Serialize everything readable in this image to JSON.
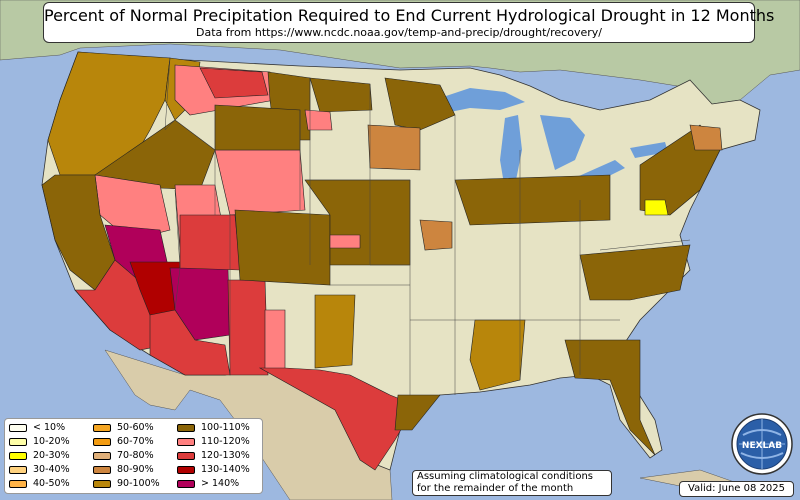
{
  "title": "Percent of Normal Precipitation Required to End Current Hydrological Drought in 12 Months",
  "subtitle": "Data from https://www.ncdc.noaa.gov/temp-and-precip/drought/recovery/",
  "note_lines": [
    "Assuming climatological conditions",
    "for the remainder of the month"
  ],
  "valid_label": "Valid: June 08 2025",
  "logo_text": "NEXLAB",
  "legend": [
    {
      "label": "< 10%",
      "color": "#fffff0"
    },
    {
      "label": "10-20%",
      "color": "#ffffa8"
    },
    {
      "label": "20-30%",
      "color": "#ffff00"
    },
    {
      "label": "30-40%",
      "color": "#ffd27f"
    },
    {
      "label": "40-50%",
      "color": "#ffb347"
    },
    {
      "label": "50-60%",
      "color": "#f5a623"
    },
    {
      "label": "60-70%",
      "color": "#f39c12"
    },
    {
      "label": "70-80%",
      "color": "#e0b07a"
    },
    {
      "label": "80-90%",
      "color": "#cd853f"
    },
    {
      "label": "90-100%",
      "color": "#b8860b"
    },
    {
      "label": "100-110%",
      "color": "#8b6508"
    },
    {
      "label": "110-120%",
      "color": "#ff8080"
    },
    {
      "label": "120-130%",
      "color": "#dc3c3c"
    },
    {
      "label": "130-140%",
      "color": "#b00000"
    },
    {
      "label": "> 140%",
      "color": "#b0005a"
    }
  ],
  "colors": {
    "ocean": "#9db8e0",
    "land": "#e6e3c4",
    "canada": "#b8c9a4",
    "mexico": "#d9ccaa",
    "lakes": "#6f9fd9",
    "border": "#222222"
  }
}
